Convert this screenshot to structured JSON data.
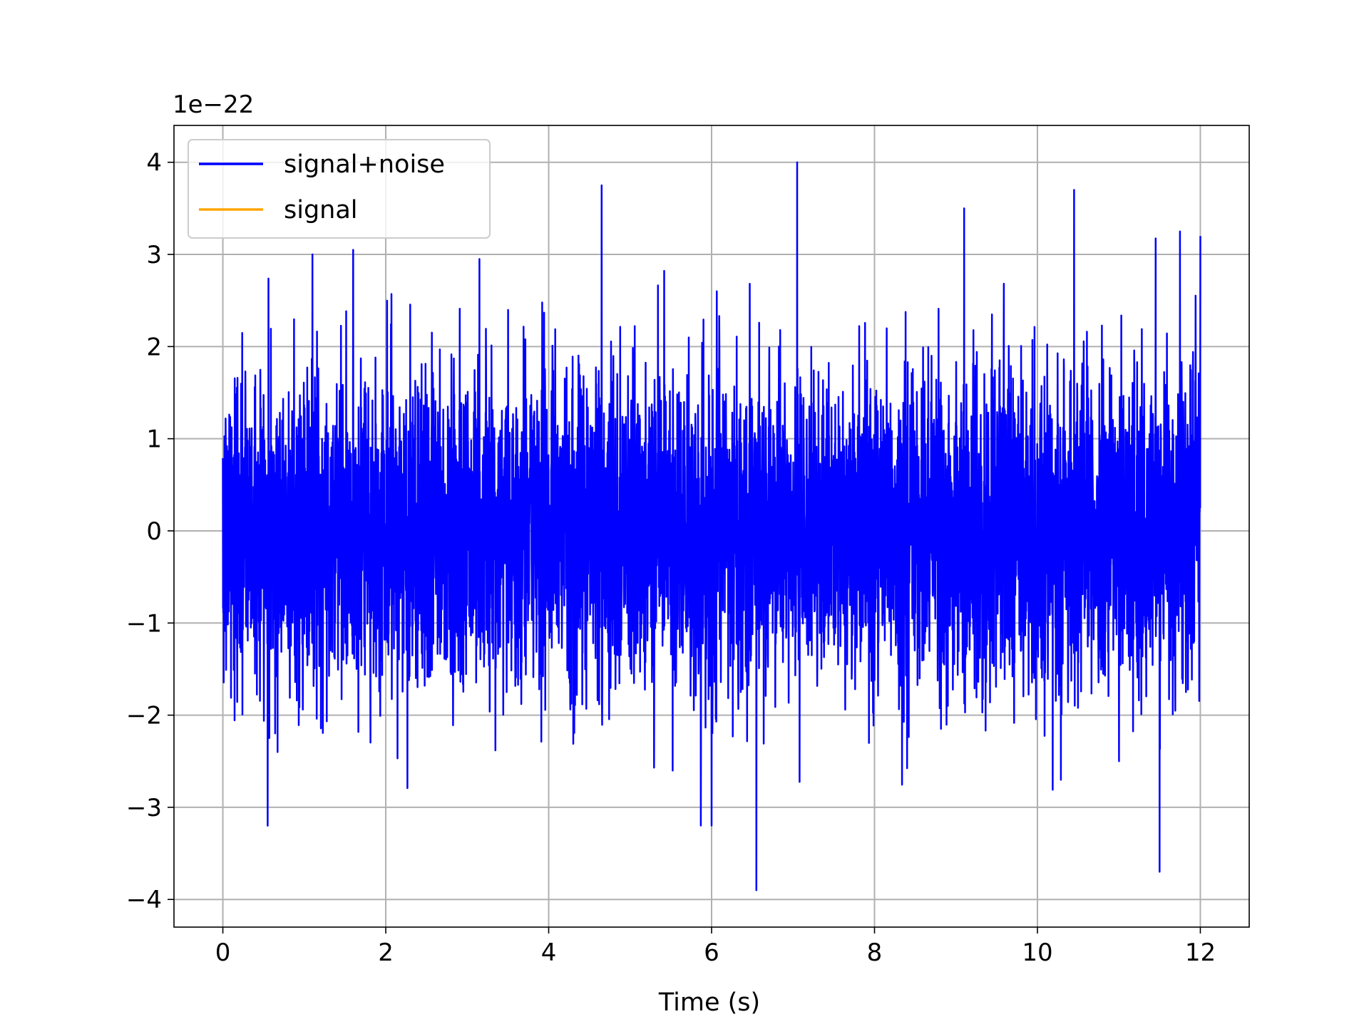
{
  "chart_data": {
    "type": "line",
    "title": "",
    "xlabel": "Time (s)",
    "ylabel": "",
    "y_offset_text": "1e−22",
    "xlim": [
      -0.6,
      12.6
    ],
    "ylim": [
      -4.3,
      4.4
    ],
    "x_ticks": [
      0,
      2,
      4,
      6,
      8,
      10,
      12
    ],
    "x_tick_labels": [
      "0",
      "2",
      "4",
      "6",
      "8",
      "10",
      "12"
    ],
    "y_ticks": [
      -4,
      -3,
      -2,
      -1,
      0,
      1,
      2,
      3,
      4
    ],
    "y_tick_labels": [
      "−4",
      "−3",
      "−2",
      "−1",
      "0",
      "1",
      "2",
      "3",
      "4"
    ],
    "grid": true,
    "legend_position": "top-left",
    "series": [
      {
        "name": "signal+noise",
        "color": "#0000ff",
        "x_range": [
          0,
          12
        ],
        "y_range": [
          -3.9,
          4.0
        ],
        "noise_std": 0.85,
        "peaks": [
          {
            "x": 0.55,
            "y": -3.2
          },
          {
            "x": 1.1,
            "y": 3.0
          },
          {
            "x": 1.6,
            "y": 3.05
          },
          {
            "x": 3.15,
            "y": 2.95
          },
          {
            "x": 4.65,
            "y": 3.75
          },
          {
            "x": 6.55,
            "y": -3.9
          },
          {
            "x": 7.05,
            "y": 4.0
          },
          {
            "x": 9.1,
            "y": 3.5
          },
          {
            "x": 10.45,
            "y": 3.7
          },
          {
            "x": 11.5,
            "y": -3.7
          },
          {
            "x": 11.75,
            "y": 3.25
          },
          {
            "x": 12.0,
            "y": 3.2
          }
        ]
      },
      {
        "name": "signal",
        "color": "#ffa500",
        "values": []
      }
    ]
  }
}
